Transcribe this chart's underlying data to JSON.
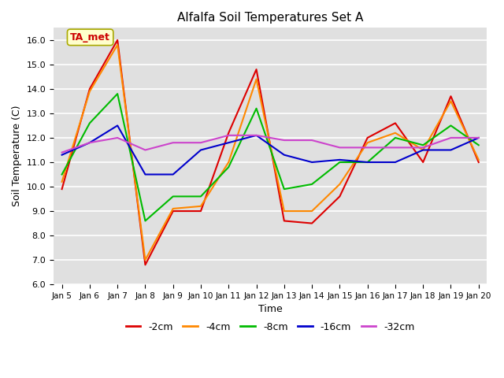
{
  "title": "Alfalfa Soil Temperatures Set A",
  "xlabel": "Time",
  "ylabel": "Soil Temperature (C)",
  "ylim": [
    6.0,
    16.5
  ],
  "yticks": [
    6.0,
    7.0,
    8.0,
    9.0,
    10.0,
    11.0,
    12.0,
    13.0,
    14.0,
    15.0,
    16.0
  ],
  "x_labels": [
    "Jan 5",
    "Jan 6",
    "Jan 7",
    "Jan 8",
    "Jan 9",
    "Jan 10",
    "Jan 11",
    "Jan 12",
    "Jan 13",
    "Jan 14",
    "Jan 15",
    "Jan 16",
    "Jan 17",
    "Jan 18",
    "Jan 19",
    "Jan 20"
  ],
  "bg_color": "#e0e0e0",
  "annotation_text": "TA_met",
  "annotation_color": "#cc0000",
  "annotation_bg": "#ffffcc",
  "annotation_edge": "#aaaa00",
  "series": {
    "-2cm": {
      "color": "#dd0000",
      "values": [
        9.9,
        14.0,
        16.0,
        6.8,
        9.0,
        9.0,
        12.2,
        14.8,
        8.6,
        8.5,
        9.6,
        12.0,
        12.6,
        11.0,
        13.7,
        11.0
      ]
    },
    "-4cm": {
      "color": "#ff8800",
      "values": [
        10.2,
        13.9,
        15.8,
        7.0,
        9.1,
        9.2,
        11.0,
        14.4,
        9.0,
        9.0,
        10.1,
        11.8,
        12.2,
        11.5,
        13.5,
        11.1
      ]
    },
    "-8cm": {
      "color": "#00bb00",
      "values": [
        10.5,
        12.6,
        13.8,
        8.6,
        9.6,
        9.6,
        10.8,
        13.2,
        9.9,
        10.1,
        11.0,
        11.0,
        12.0,
        11.7,
        12.5,
        11.7
      ]
    },
    "-16cm": {
      "color": "#0000cc",
      "values": [
        11.3,
        11.8,
        12.5,
        10.5,
        10.5,
        11.5,
        11.8,
        12.1,
        11.3,
        11.0,
        11.1,
        11.0,
        11.0,
        11.5,
        11.5,
        12.0
      ]
    },
    "-32cm": {
      "color": "#cc44cc",
      "values": [
        11.4,
        11.8,
        12.0,
        11.5,
        11.8,
        11.8,
        12.1,
        12.1,
        11.9,
        11.9,
        11.6,
        11.6,
        11.6,
        11.6,
        12.0,
        12.0
      ]
    }
  },
  "series_order": [
    "-2cm",
    "-4cm",
    "-8cm",
    "-16cm",
    "-32cm"
  ]
}
